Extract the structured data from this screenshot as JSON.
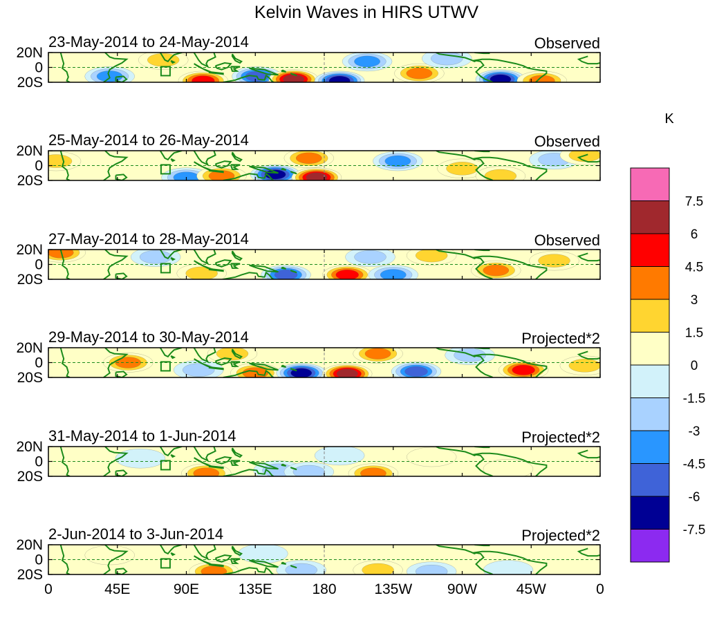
{
  "chart_data": {
    "type": "heatmap",
    "title": "Kelvin Waves in HIRS UTWV",
    "x_ticks": [
      "0",
      "45E",
      "90E",
      "135E",
      "180",
      "135W",
      "90W",
      "45W",
      "0"
    ],
    "y_ticks": [
      "20N",
      "0",
      "20S"
    ],
    "x_range_lon": [
      0,
      360
    ],
    "y_range_lat": [
      -20,
      20
    ],
    "units": "K",
    "colorbar": {
      "label": "K",
      "levels": [
        "7.5",
        "6",
        "4.5",
        "3",
        "1.5",
        "0",
        "-1.5",
        "-3",
        "-4.5",
        "-6",
        "-7.5"
      ],
      "colors": [
        "#f76ab5",
        "#a0282d",
        "#ff0000",
        "#ff7a00",
        "#ffd530",
        "#ffffc6",
        "#d2f2fa",
        "#a9d2ff",
        "#2996ff",
        "#3f63d8",
        "#000094",
        "#8c2af0"
      ]
    },
    "panels": [
      {
        "date": "23-May-2014 to 24-May-2014",
        "label": "Observed",
        "anomalies": [
          {
            "lon": 101,
            "lat": -18,
            "value": 6
          },
          {
            "lon": 136,
            "lat": -12,
            "value": -6
          },
          {
            "lon": 160,
            "lat": -16,
            "value": 7.5
          },
          {
            "lon": 190,
            "lat": -18,
            "value": -7.5
          },
          {
            "lon": 208,
            "lat": 8,
            "value": -4.5
          },
          {
            "lon": 242,
            "lat": -8,
            "value": 4.5
          },
          {
            "lon": 295,
            "lat": -16,
            "value": -7.5
          },
          {
            "lon": 322,
            "lat": -18,
            "value": 4.5
          },
          {
            "lon": 40,
            "lat": -12,
            "value": -4.5
          },
          {
            "lon": 75,
            "lat": 10,
            "value": 3
          },
          {
            "lon": 260,
            "lat": 12,
            "value": -3
          }
        ]
      },
      {
        "date": "25-May-2014 to 26-May-2014",
        "label": "Observed",
        "anomalies": [
          {
            "lon": 90,
            "lat": -16,
            "value": -4.5
          },
          {
            "lon": 113,
            "lat": -14,
            "value": 4.5
          },
          {
            "lon": 148,
            "lat": -12,
            "value": -7.5
          },
          {
            "lon": 175,
            "lat": -16,
            "value": 7.5
          },
          {
            "lon": 170,
            "lat": 10,
            "value": 4.5
          },
          {
            "lon": 228,
            "lat": 6,
            "value": -4.5
          },
          {
            "lon": 270,
            "lat": -4,
            "value": 3
          },
          {
            "lon": 295,
            "lat": -14,
            "value": 3
          },
          {
            "lon": 330,
            "lat": 8,
            "value": -3
          },
          {
            "lon": 5,
            "lat": 6,
            "value": 3
          },
          {
            "lon": 350,
            "lat": 14,
            "value": 3
          }
        ]
      },
      {
        "date": "27-May-2014 to 28-May-2014",
        "label": "Observed",
        "anomalies": [
          {
            "lon": 155,
            "lat": -14,
            "value": -6
          },
          {
            "lon": 195,
            "lat": -14,
            "value": 6
          },
          {
            "lon": 225,
            "lat": -14,
            "value": -4.5
          },
          {
            "lon": 210,
            "lat": 10,
            "value": -3
          },
          {
            "lon": 292,
            "lat": -8,
            "value": 4.5
          },
          {
            "lon": 330,
            "lat": 5,
            "value": 3
          },
          {
            "lon": 8,
            "lat": 16,
            "value": 4.5
          },
          {
            "lon": 70,
            "lat": 10,
            "value": -3
          },
          {
            "lon": 100,
            "lat": -12,
            "value": 3
          },
          {
            "lon": 250,
            "lat": 12,
            "value": 3
          }
        ]
      },
      {
        "date": "29-May-2014 to 30-May-2014",
        "label": "Projected*2",
        "anomalies": [
          {
            "lon": 52,
            "lat": 0,
            "value": 4.5
          },
          {
            "lon": 98,
            "lat": -10,
            "value": -3
          },
          {
            "lon": 135,
            "lat": -14,
            "value": 4.5
          },
          {
            "lon": 165,
            "lat": -14,
            "value": -7.5
          },
          {
            "lon": 195,
            "lat": -15,
            "value": 7.5
          },
          {
            "lon": 215,
            "lat": 12,
            "value": 4.5
          },
          {
            "lon": 240,
            "lat": -12,
            "value": -6
          },
          {
            "lon": 310,
            "lat": -10,
            "value": 6
          },
          {
            "lon": 120,
            "lat": 12,
            "value": 3
          },
          {
            "lon": 275,
            "lat": 10,
            "value": -3
          },
          {
            "lon": 350,
            "lat": -4,
            "value": 3
          }
        ]
      },
      {
        "date": "31-May-2014 to 1-Jun-2014",
        "label": "Projected*2",
        "anomalies": [
          {
            "lon": 103,
            "lat": -16,
            "value": 4.5
          },
          {
            "lon": 150,
            "lat": -12,
            "value": -3
          },
          {
            "lon": 170,
            "lat": -14,
            "value": -3
          },
          {
            "lon": 212,
            "lat": -16,
            "value": 4.5
          },
          {
            "lon": 250,
            "lat": 6,
            "value": 1.5
          },
          {
            "lon": 300,
            "lat": -10,
            "value": 1.5
          },
          {
            "lon": 190,
            "lat": 8,
            "value": -1.5
          },
          {
            "lon": 60,
            "lat": 4,
            "value": -1.5
          }
        ]
      },
      {
        "date": "2-Jun-2014 to 3-Jun-2014",
        "label": "Projected*2",
        "anomalies": [
          {
            "lon": 108,
            "lat": -16,
            "value": 4.5
          },
          {
            "lon": 165,
            "lat": -14,
            "value": -3
          },
          {
            "lon": 215,
            "lat": -14,
            "value": 3
          },
          {
            "lon": 250,
            "lat": -16,
            "value": -3
          },
          {
            "lon": 300,
            "lat": -14,
            "value": -1.5
          },
          {
            "lon": 140,
            "lat": 8,
            "value": -1.5
          },
          {
            "lon": 40,
            "lat": 6,
            "value": 1.5
          }
        ]
      }
    ]
  }
}
